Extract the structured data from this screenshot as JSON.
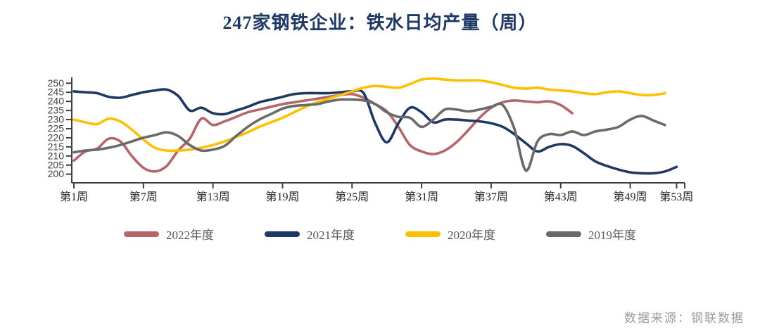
{
  "title": "247家钢铁企业：铁水日均产量（周）",
  "footer": {
    "source_label": "数据来源：钢联数据"
  },
  "colors": {
    "title": "#1f3864",
    "axis": "#3f3f3f",
    "y_tick_text": "#404040",
    "x_tick_text": "#262626"
  },
  "chart_data": {
    "type": "line",
    "title": "247家钢铁企业：铁水日均产量（周）",
    "xlabel": "",
    "ylabel": "",
    "grid": false,
    "legend_position": "bottom",
    "x_axis": {
      "tick_labels": [
        "第1周",
        "第7周",
        "第13周",
        "第19周",
        "第25周",
        "第31周",
        "第37周",
        "第43周",
        "第49周",
        "第53周"
      ],
      "tick_weeks": [
        1,
        7,
        13,
        19,
        25,
        31,
        37,
        43,
        49,
        53
      ],
      "min_week": 1,
      "max_week": 53
    },
    "y_axis": {
      "tick_labels": [
        "250",
        "245",
        "240",
        "235",
        "230",
        "225",
        "220",
        "215",
        "210",
        "205",
        "200"
      ],
      "min": 200,
      "max": 250,
      "step": 5
    },
    "series": [
      {
        "name": "2022年度",
        "color": "#b5666b",
        "start_week": 1,
        "values": [
          207.5,
          212.5,
          214,
          219.5,
          218,
          210,
          203.5,
          201.5,
          204.5,
          213,
          219.5,
          230.5,
          227,
          229,
          231.5,
          234,
          235.5,
          237,
          238.5,
          239.5,
          240.5,
          241.5,
          242.5,
          243.5,
          244,
          242,
          238.5,
          234.5,
          226,
          216,
          212.5,
          211,
          213,
          217.5,
          224,
          231,
          236.5,
          239.5,
          240.5,
          240,
          239.5,
          240,
          238,
          233.5
        ]
      },
      {
        "name": "2021年度",
        "color": "#1f3864",
        "start_week": 1,
        "values": [
          245.5,
          245,
          244.5,
          242.5,
          242,
          243.5,
          245,
          246,
          246.5,
          243,
          235,
          236.5,
          233.5,
          233,
          235,
          237,
          239.5,
          241,
          242.5,
          244,
          244.5,
          244.5,
          244.5,
          245,
          245.5,
          244.5,
          228,
          217.5,
          228,
          236.5,
          234,
          228.5,
          230,
          230,
          229.5,
          229,
          228,
          226,
          222,
          217,
          212.5,
          215,
          216.5,
          215.5,
          211.5,
          207,
          204.5,
          202.5,
          201,
          200.5,
          200.5,
          201.5,
          204
        ]
      },
      {
        "name": "2020年度",
        "color": "#fdc101",
        "start_week": 1,
        "values": [
          230,
          228.5,
          227.5,
          230.5,
          229,
          224.5,
          219,
          214.5,
          213,
          213,
          213.5,
          214.5,
          216,
          218,
          220.5,
          223,
          226,
          228.5,
          231,
          234,
          237,
          239.5,
          241.5,
          243.5,
          245.5,
          247.5,
          248.5,
          248,
          247.5,
          249.5,
          252,
          252.5,
          252,
          251.5,
          251.5,
          251.5,
          250.5,
          249,
          247.5,
          247,
          247.5,
          246.5,
          246,
          245.5,
          244.5,
          244,
          245,
          245.5,
          244.5,
          243.5,
          243.5,
          244.5
        ]
      },
      {
        "name": "2019年度",
        "color": "#6a6a6a",
        "start_week": 1,
        "values": [
          212,
          213,
          213.5,
          214.5,
          216,
          218,
          220,
          221.5,
          223,
          221,
          216,
          213,
          213.5,
          215.5,
          221,
          226,
          230,
          233,
          236,
          237.5,
          238,
          238.5,
          240,
          241,
          241,
          240.5,
          238.5,
          234,
          231.5,
          231,
          226,
          230,
          235.5,
          235.5,
          234.5,
          235.5,
          237,
          238,
          225,
          202,
          218,
          222,
          221.5,
          223.5,
          221.5,
          223.5,
          224.5,
          226,
          230,
          232,
          229.5,
          227
        ]
      }
    ]
  }
}
